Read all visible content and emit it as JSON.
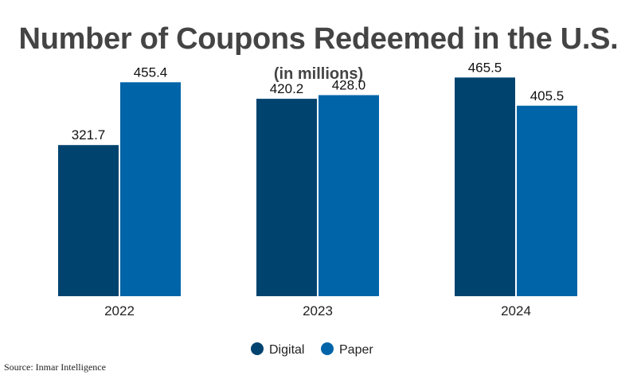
{
  "chart_data": {
    "type": "bar",
    "title": "Number of Coupons Redeemed in the U.S.",
    "subtitle": "(in millions)",
    "categories": [
      "2022",
      "2023",
      "2024"
    ],
    "series": [
      {
        "name": "Digital",
        "color": "#00436f",
        "values": [
          321.7,
          420.2,
          465.5
        ],
        "labels": [
          "321.7",
          "420.2",
          "465.5"
        ]
      },
      {
        "name": "Paper",
        "color": "#0064a8",
        "values": [
          455.4,
          428.0,
          405.5
        ],
        "labels": [
          "455.4",
          "428.0",
          "405.5"
        ]
      }
    ],
    "ylim": [
      0,
      500
    ],
    "grid": false,
    "legend_position": "bottom-center"
  },
  "source": "Source: Inmar Intelligence"
}
